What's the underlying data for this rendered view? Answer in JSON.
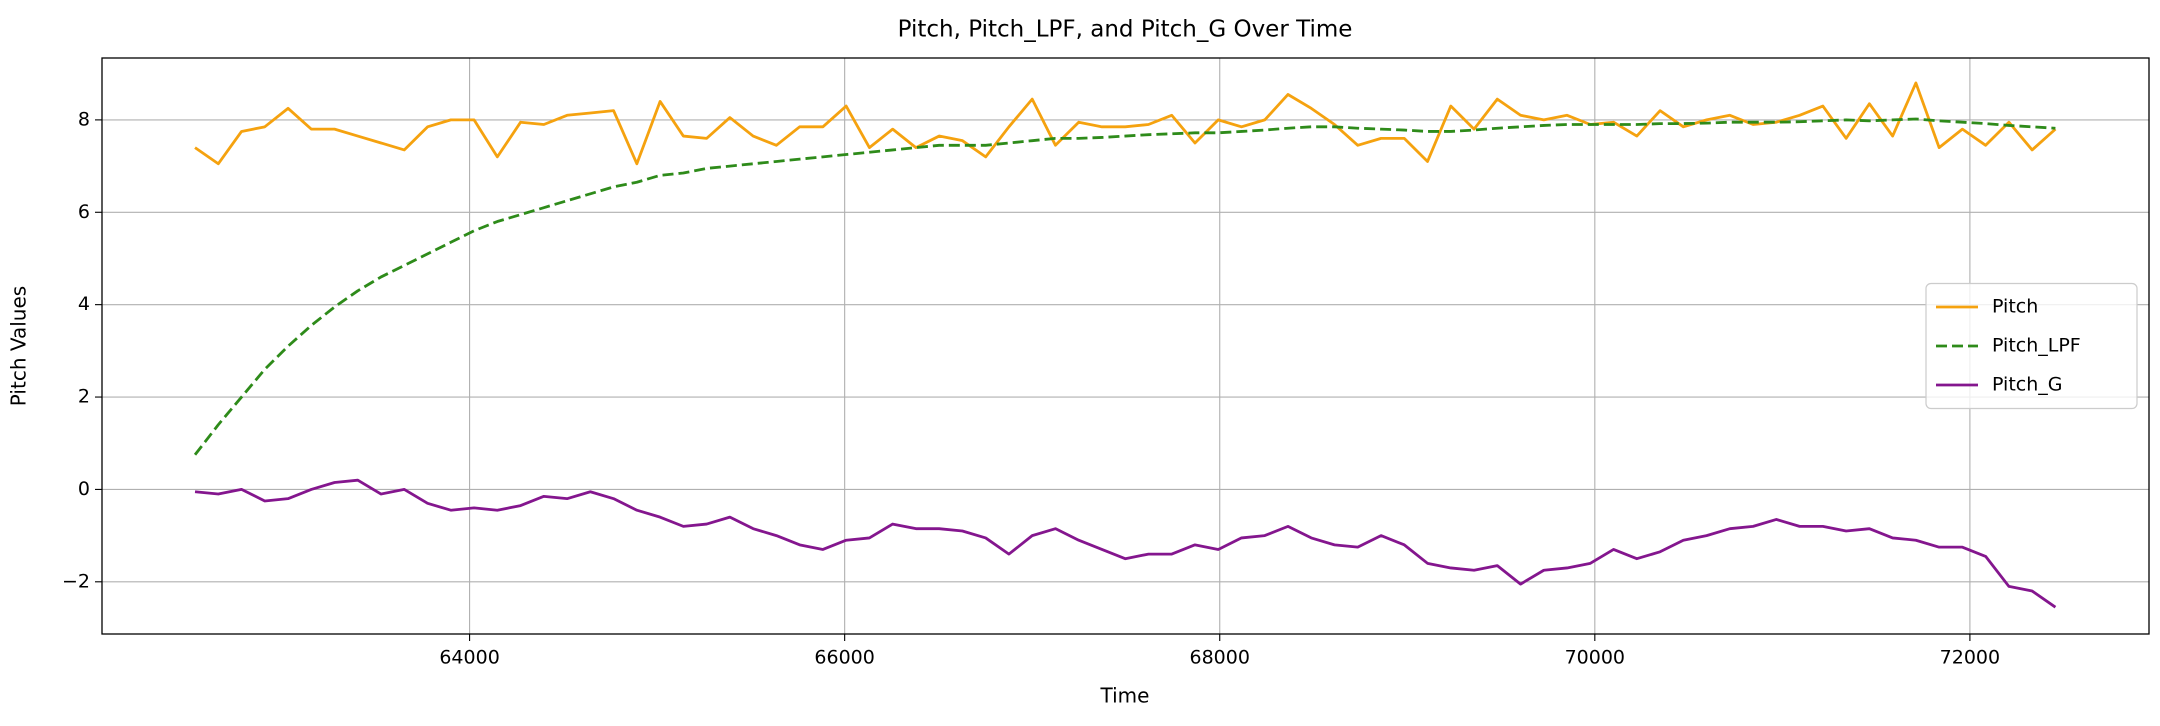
{
  "chart_data": {
    "type": "line",
    "title": "Pitch, Pitch_LPF, and Pitch_G Over Time",
    "x_label": "Time",
    "y_label": "Pitch Values",
    "x": [
      62536,
      62660,
      62784,
      62908,
      63032,
      63156,
      63280,
      63404,
      63528,
      63652,
      63776,
      63900,
      64024,
      64148,
      64272,
      64396,
      64520,
      64644,
      64768,
      64892,
      65016,
      65140,
      65264,
      65388,
      65512,
      65636,
      65760,
      65884,
      66008,
      66132,
      66256,
      66380,
      66504,
      66628,
      66752,
      66876,
      67000,
      67124,
      67248,
      67372,
      67496,
      67620,
      67744,
      67868,
      67992,
      68116,
      68240,
      68364,
      68488,
      68612,
      68736,
      68860,
      68984,
      69108,
      69232,
      69356,
      69480,
      69604,
      69728,
      69852,
      69976,
      70100,
      70224,
      70348,
      70472,
      70596,
      70720,
      70844,
      70968,
      71092,
      71216,
      71340,
      71464,
      71588,
      71712,
      71836,
      71960,
      72084,
      72208,
      72332,
      72456
    ],
    "series": [
      {
        "name": "Pitch",
        "color": "#f5a20f",
        "dash": "solid",
        "values": [
          7.4,
          7.05,
          7.75,
          7.85,
          8.25,
          7.8,
          7.8,
          7.65,
          7.5,
          7.35,
          7.85,
          8.0,
          8.0,
          7.2,
          7.95,
          7.9,
          8.1,
          8.15,
          8.2,
          7.05,
          8.4,
          7.65,
          7.6,
          8.05,
          7.65,
          7.45,
          7.85,
          7.85,
          8.3,
          7.4,
          7.8,
          7.4,
          7.65,
          7.55,
          7.2,
          7.85,
          8.45,
          7.45,
          7.95,
          7.85,
          7.85,
          7.9,
          8.1,
          7.5,
          8.0,
          7.85,
          8.0,
          8.55,
          8.25,
          7.9,
          7.45,
          7.6,
          7.6,
          7.1,
          8.3,
          7.8,
          8.45,
          8.1,
          8.0,
          8.1,
          7.9,
          7.95,
          7.65,
          8.2,
          7.85,
          8.0,
          8.1,
          7.9,
          7.95,
          8.1,
          8.3,
          7.6,
          8.35,
          7.65,
          8.8,
          7.4,
          7.8,
          7.45,
          7.95,
          7.35,
          7.8
        ]
      },
      {
        "name": "Pitch_LPF",
        "color": "#2e8b1a",
        "dash": "dashed",
        "values": [
          0.75,
          1.4,
          2.0,
          2.6,
          3.1,
          3.55,
          3.95,
          4.3,
          4.6,
          4.85,
          5.1,
          5.35,
          5.6,
          5.8,
          5.95,
          6.1,
          6.25,
          6.4,
          6.55,
          6.65,
          6.8,
          6.85,
          6.95,
          7.0,
          7.05,
          7.1,
          7.15,
          7.2,
          7.25,
          7.3,
          7.35,
          7.4,
          7.45,
          7.45,
          7.45,
          7.5,
          7.55,
          7.6,
          7.6,
          7.62,
          7.65,
          7.68,
          7.7,
          7.72,
          7.72,
          7.75,
          7.78,
          7.82,
          7.85,
          7.85,
          7.82,
          7.8,
          7.78,
          7.75,
          7.75,
          7.78,
          7.82,
          7.85,
          7.88,
          7.9,
          7.9,
          7.9,
          7.9,
          7.92,
          7.92,
          7.93,
          7.95,
          7.95,
          7.95,
          7.96,
          7.98,
          8.0,
          7.98,
          8.0,
          8.02,
          7.98,
          7.95,
          7.92,
          7.88,
          7.85,
          7.82
        ]
      },
      {
        "name": "Pitch_G",
        "color": "#84168e",
        "dash": "solid",
        "values": [
          -0.05,
          -0.1,
          0.0,
          -0.25,
          -0.2,
          0.0,
          0.15,
          0.2,
          -0.1,
          0.0,
          -0.3,
          -0.45,
          -0.4,
          -0.45,
          -0.35,
          -0.15,
          -0.2,
          -0.05,
          -0.2,
          -0.45,
          -0.6,
          -0.8,
          -0.75,
          -0.6,
          -0.85,
          -1.0,
          -1.2,
          -1.3,
          -1.1,
          -1.05,
          -0.75,
          -0.85,
          -0.85,
          -0.9,
          -1.05,
          -1.4,
          -1.0,
          -0.85,
          -1.1,
          -1.3,
          -1.5,
          -1.4,
          -1.4,
          -1.2,
          -1.3,
          -1.05,
          -1.0,
          -0.8,
          -1.05,
          -1.2,
          -1.25,
          -1.0,
          -1.2,
          -1.6,
          -1.7,
          -1.75,
          -1.65,
          -2.05,
          -1.75,
          -1.7,
          -1.6,
          -1.3,
          -1.5,
          -1.35,
          -1.1,
          -1.0,
          -0.85,
          -0.8,
          -0.65,
          -0.8,
          -0.8,
          -0.9,
          -0.85,
          -1.05,
          -1.1,
          -1.25,
          -1.25,
          -1.45,
          -2.1,
          -2.2,
          -2.55
        ]
      }
    ],
    "xlim": [
      62040,
      72955
    ],
    "ylim": [
      -3.13,
      9.34
    ],
    "xticks": [
      64000,
      66000,
      68000,
      70000,
      72000
    ],
    "yticks": [
      {
        "value": -2,
        "label": "−2"
      },
      0,
      2,
      4,
      6,
      8
    ],
    "grid": true,
    "legend": "center right"
  }
}
